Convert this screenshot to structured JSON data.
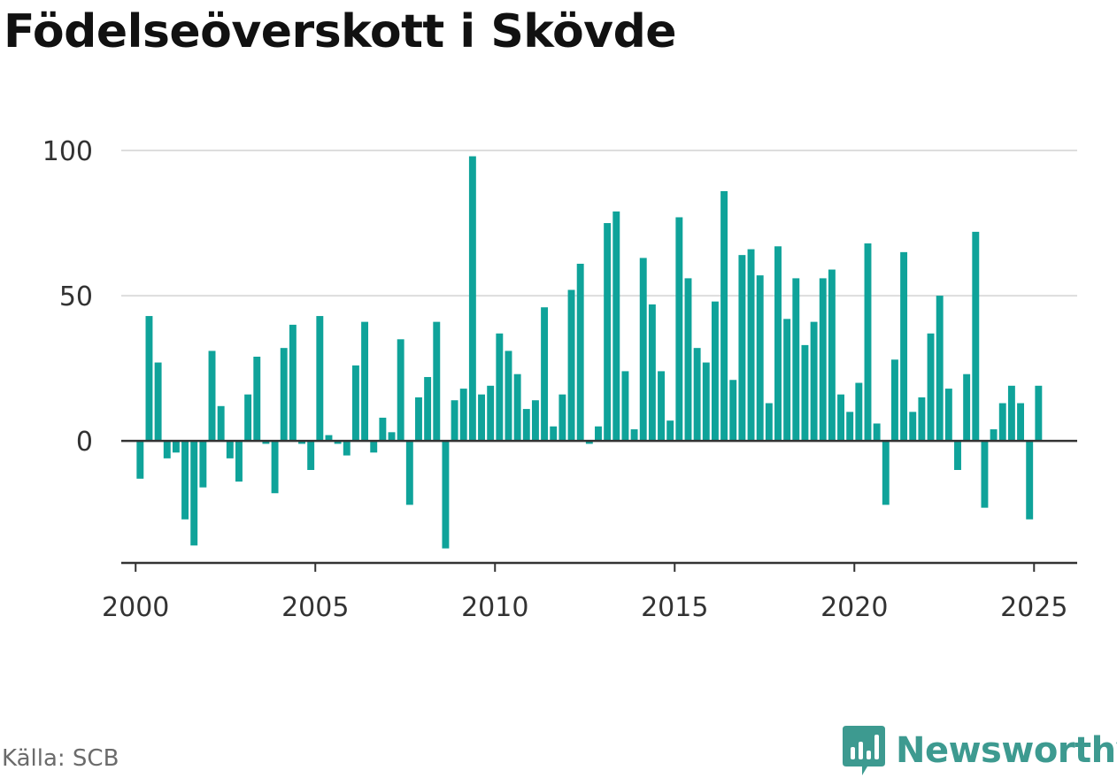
{
  "title": "Födelseöverskott i Skövde",
  "source": "Källa: SCB",
  "brand": "Newsworthy",
  "colors": {
    "bar": "#0fa39a",
    "brand": "#3d9a90",
    "grid": "#dddddd",
    "axis": "#333333"
  },
  "chart_data": {
    "type": "bar",
    "title": "Födelseöverskott i Skövde",
    "xlabel": "",
    "ylabel": "",
    "xlim": [
      1999.6,
      2026.2
    ],
    "ylim": [
      -42,
      100
    ],
    "y_ticks": [
      0,
      50,
      100
    ],
    "x_ticks": [
      2000,
      2005,
      2010,
      2015,
      2020,
      2025
    ],
    "grid": true,
    "legend": "none",
    "frequency": "quarterly",
    "start": "2000-Q1",
    "values": [
      -13,
      43,
      27,
      -6,
      -4,
      -27,
      -36,
      -16,
      31,
      12,
      -6,
      -14,
      16,
      29,
      -1,
      -18,
      32,
      40,
      -1,
      -10,
      43,
      2,
      -1,
      -5,
      26,
      41,
      -4,
      8,
      3,
      35,
      -22,
      15,
      22,
      41,
      -37,
      14,
      18,
      98,
      16,
      19,
      37,
      31,
      23,
      11,
      14,
      46,
      5,
      16,
      52,
      61,
      -1,
      5,
      75,
      79,
      24,
      4,
      63,
      47,
      24,
      7,
      77,
      56,
      32,
      27,
      48,
      86,
      21,
      64,
      66,
      57,
      13,
      67,
      42,
      56,
      33,
      41,
      56,
      59,
      16,
      10,
      20,
      68,
      6,
      -22,
      28,
      65,
      10,
      15,
      37,
      50,
      18,
      -10,
      23,
      72,
      -23,
      4,
      13,
      19,
      13,
      -27,
      19
    ]
  }
}
